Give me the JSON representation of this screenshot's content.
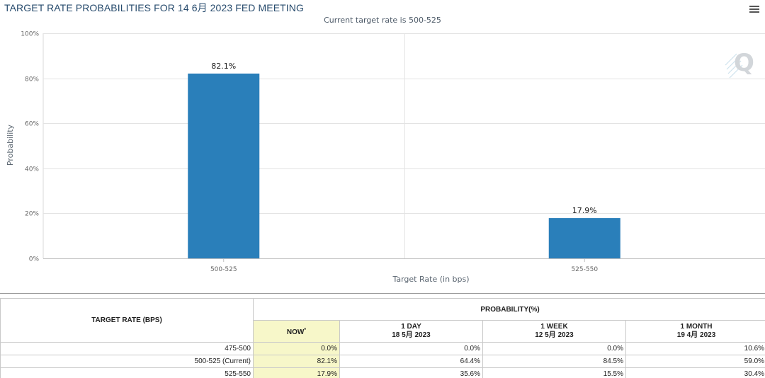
{
  "header": {
    "title": "TARGET RATE PROBABILITIES FOR 14 6月 2023 FED MEETING",
    "subtitle": "Current target rate is 500-525"
  },
  "chart_data": {
    "type": "bar",
    "categories": [
      "500-525",
      "525-550"
    ],
    "values": [
      82.1,
      17.9
    ],
    "data_labels": [
      "82.1%",
      "17.9%"
    ],
    "title": "TARGET RATE PROBABILITIES FOR 14 6月 2023 FED MEETING",
    "subtitle": "Current target rate is 500-525",
    "xlabel": "Target Rate (in bps)",
    "ylabel": "Probability",
    "ylim": [
      0,
      100
    ],
    "yticks": [
      0,
      20,
      40,
      60,
      80,
      100
    ],
    "ytick_labels": [
      "0%",
      "20%",
      "40%",
      "60%",
      "80%",
      "100%"
    ],
    "grid": true,
    "bar_color": "#2a7fba"
  },
  "logo": {
    "letter": "Q"
  },
  "table": {
    "col_rate_header": "TARGET RATE (BPS)",
    "probability_header": "PROBABILITY(%)",
    "columns": [
      {
        "line1": "NOW",
        "line2": "",
        "marker": "*"
      },
      {
        "line1": "1 DAY",
        "line2": "18 5月 2023",
        "marker": ""
      },
      {
        "line1": "1 WEEK",
        "line2": "12 5月 2023",
        "marker": ""
      },
      {
        "line1": "1 MONTH",
        "line2": "19 4月 2023",
        "marker": ""
      }
    ],
    "rows": [
      {
        "rate": "475-500",
        "values": [
          "0.0%",
          "0.0%",
          "0.0%",
          "10.6%"
        ]
      },
      {
        "rate": "500-525 (Current)",
        "values": [
          "82.1%",
          "64.4%",
          "84.5%",
          "59.0%"
        ]
      },
      {
        "rate": "525-550",
        "values": [
          "17.9%",
          "35.6%",
          "15.5%",
          "30.4%"
        ]
      }
    ]
  },
  "colors": {
    "bar": "#2a7fba",
    "now_highlight": "#f7f7c9",
    "title": "#274b6d"
  }
}
